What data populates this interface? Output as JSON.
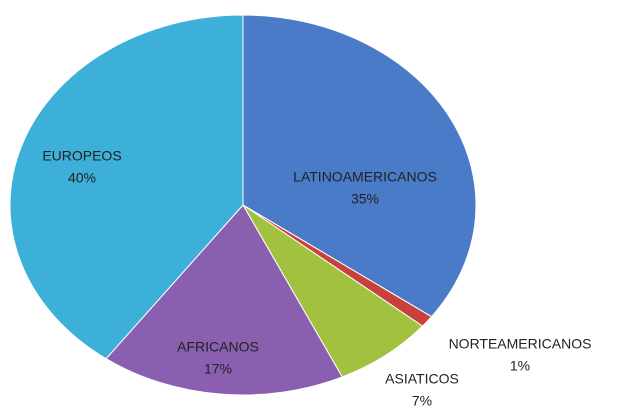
{
  "chart_data": {
    "type": "pie",
    "categories": [
      "LATINOAMERICANOS",
      "NORTEAMERICANOS",
      "ASIATICOS",
      "AFRICANOS",
      "EUROPEOS"
    ],
    "values": [
      35,
      1,
      7,
      17,
      40
    ],
    "value_labels": [
      "35%",
      "1%",
      "7%",
      "17%",
      "40%"
    ],
    "colors": [
      "#4a7bc8",
      "#c8413c",
      "#a2c13e",
      "#8a5fb0",
      "#3cb0d8"
    ]
  }
}
